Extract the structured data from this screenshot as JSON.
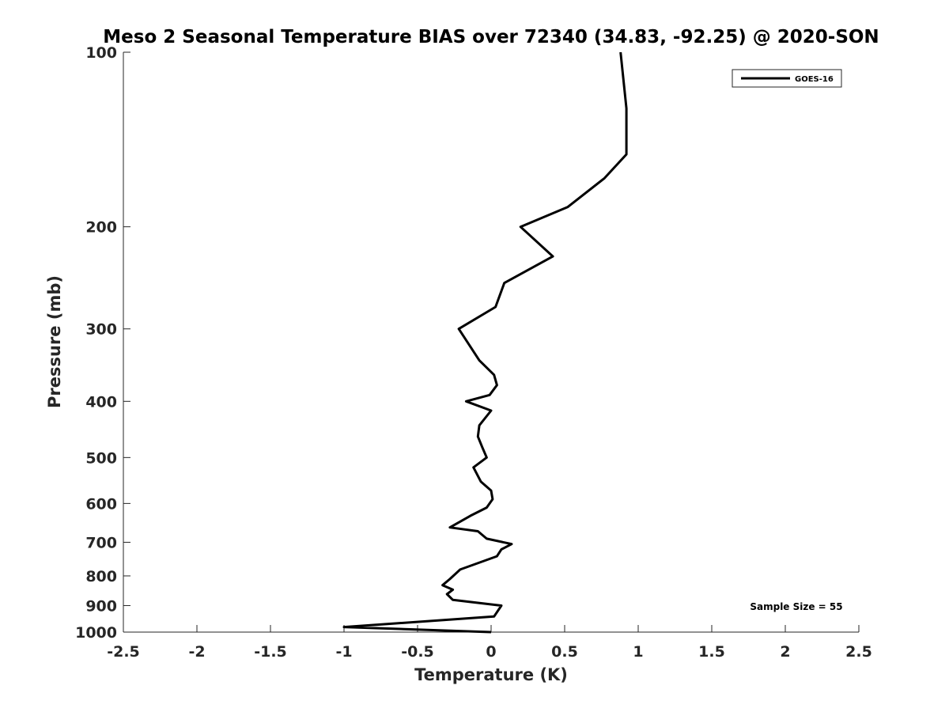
{
  "chart_data": {
    "type": "line",
    "title": "Meso 2 Seasonal Temperature BIAS over 72340 (34.83, -92.25) @ 2020-SON",
    "xlabel": "Temperature (K)",
    "ylabel": "Pressure (mb)",
    "xlim": [
      -2.5,
      2.5
    ],
    "ylim": [
      100,
      1000
    ],
    "y_scale": "log",
    "y_reversed": true,
    "x_ticks": [
      "-2.5",
      "-2",
      "-1.5",
      "-1",
      "-0.5",
      "0",
      "0.5",
      "1",
      "1.5",
      "2",
      "2.5"
    ],
    "y_ticks": [
      "100",
      "200",
      "300",
      "400",
      "500",
      "600",
      "700",
      "800",
      "900",
      "1000"
    ],
    "grid": false,
    "legend_position": "top-right",
    "annotation": "Sample Size = 55",
    "series": [
      {
        "name": "GOES-16",
        "color": "#000000",
        "points": [
          {
            "x": 0.88,
            "y": 100
          },
          {
            "x": 0.92,
            "y": 125
          },
          {
            "x": 0.92,
            "y": 150
          },
          {
            "x": 0.77,
            "y": 165
          },
          {
            "x": 0.52,
            "y": 185
          },
          {
            "x": 0.2,
            "y": 200
          },
          {
            "x": 0.42,
            "y": 225
          },
          {
            "x": 0.09,
            "y": 250
          },
          {
            "x": 0.03,
            "y": 275
          },
          {
            "x": -0.22,
            "y": 300
          },
          {
            "x": -0.08,
            "y": 340
          },
          {
            "x": 0.02,
            "y": 360
          },
          {
            "x": 0.04,
            "y": 375
          },
          {
            "x": -0.01,
            "y": 390
          },
          {
            "x": -0.17,
            "y": 400
          },
          {
            "x": 0.0,
            "y": 415
          },
          {
            "x": -0.08,
            "y": 440
          },
          {
            "x": -0.09,
            "y": 460
          },
          {
            "x": -0.06,
            "y": 480
          },
          {
            "x": -0.03,
            "y": 500
          },
          {
            "x": -0.12,
            "y": 520
          },
          {
            "x": -0.07,
            "y": 550
          },
          {
            "x": 0.0,
            "y": 570
          },
          {
            "x": 0.01,
            "y": 590
          },
          {
            "x": -0.03,
            "y": 610
          },
          {
            "x": -0.14,
            "y": 630
          },
          {
            "x": -0.28,
            "y": 660
          },
          {
            "x": -0.09,
            "y": 670
          },
          {
            "x": -0.03,
            "y": 690
          },
          {
            "x": 0.14,
            "y": 705
          },
          {
            "x": 0.07,
            "y": 720
          },
          {
            "x": 0.04,
            "y": 740
          },
          {
            "x": -0.21,
            "y": 780
          },
          {
            "x": -0.28,
            "y": 810
          },
          {
            "x": -0.33,
            "y": 830
          },
          {
            "x": -0.26,
            "y": 845
          },
          {
            "x": -0.3,
            "y": 860
          },
          {
            "x": -0.26,
            "y": 880
          },
          {
            "x": 0.07,
            "y": 900
          },
          {
            "x": 0.02,
            "y": 940
          },
          {
            "x": -1.0,
            "y": 980
          },
          {
            "x": 0.0,
            "y": 1000
          }
        ]
      }
    ]
  }
}
